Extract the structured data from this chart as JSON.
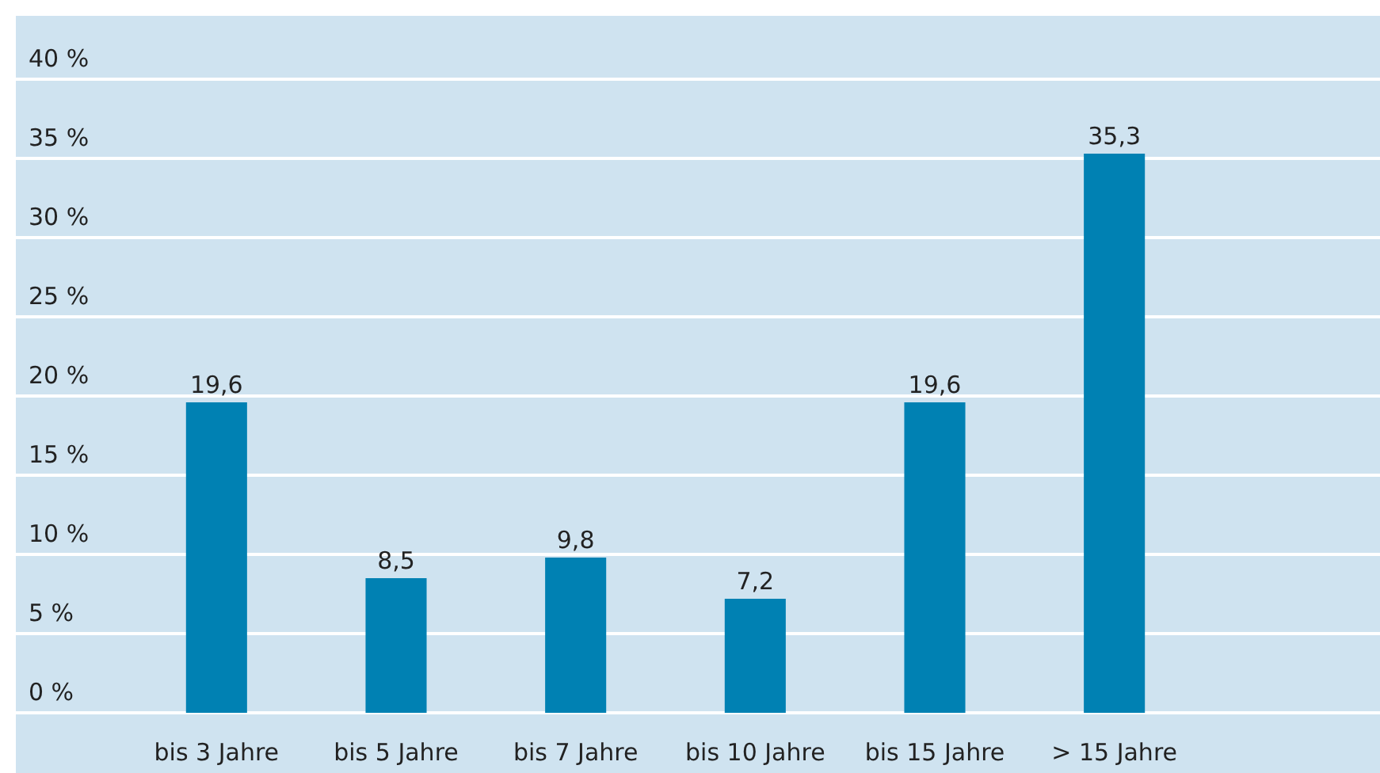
{
  "chart_data": {
    "type": "bar",
    "categories": [
      "bis 3 Jahre",
      "bis 5 Jahre",
      "bis 7 Jahre",
      "bis 10 Jahre",
      "bis 15 Jahre",
      "> 15 Jahre"
    ],
    "values": [
      19.6,
      8.5,
      9.8,
      7.2,
      19.6,
      35.3
    ],
    "value_labels": [
      "19,6",
      "8,5",
      "9,8",
      "7,2",
      "19,6",
      "35,3"
    ],
    "color": "#0081b3",
    "ylim": [
      0,
      40
    ],
    "yticks": [
      {
        "value": 0,
        "label": "0 %"
      },
      {
        "value": 5,
        "label": "5 %"
      },
      {
        "value": 10,
        "label": "10 %"
      },
      {
        "value": 15,
        "label": "15 %"
      },
      {
        "value": 20,
        "label": "20 %"
      },
      {
        "value": 25,
        "label": "25 %"
      },
      {
        "value": 30,
        "label": "30 %"
      },
      {
        "value": 35,
        "label": "35 %"
      },
      {
        "value": 40,
        "label": "40 %"
      }
    ],
    "grid": "y"
  }
}
